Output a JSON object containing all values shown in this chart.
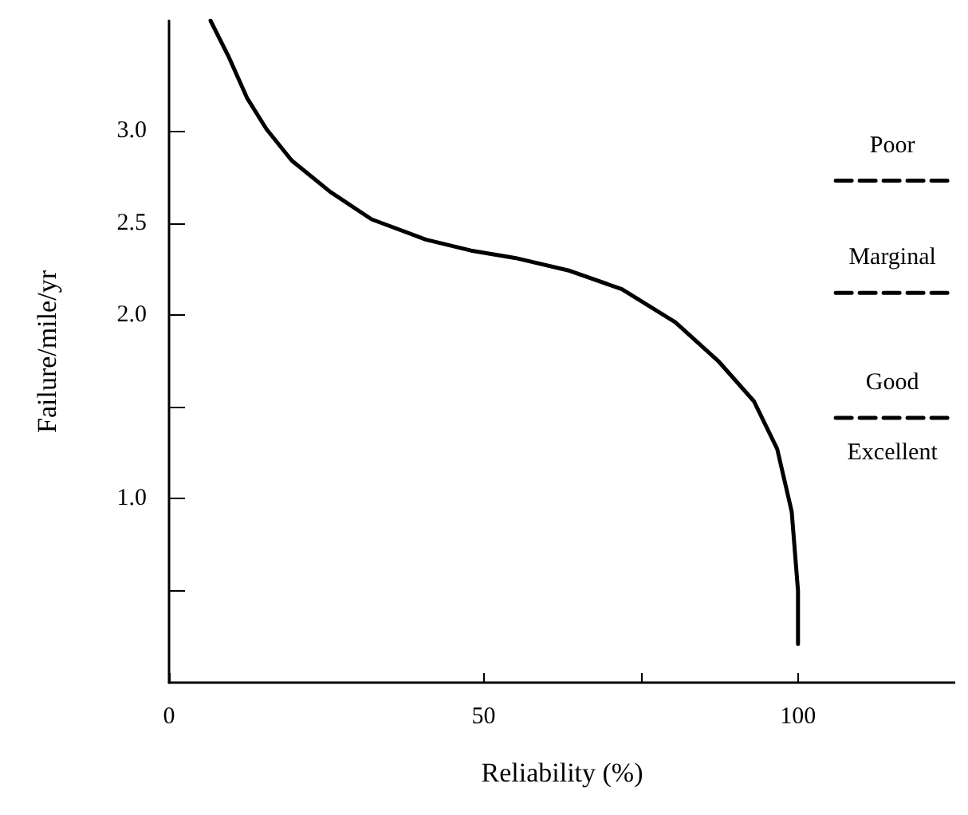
{
  "chart_data": {
    "type": "line",
    "xlabel": "Reliability (%)",
    "ylabel": "Failure/mile/yr",
    "xlim": [
      0,
      125
    ],
    "xticks": [
      0,
      50,
      {
        "value": 75,
        "label": null
      },
      100
    ],
    "ylim": [
      0,
      3.6
    ],
    "yticks": [
      {
        "value": 0.5,
        "label": null
      },
      {
        "value": 1,
        "label": "1.0"
      },
      {
        "value": 1.5,
        "label": null
      },
      {
        "value": 2,
        "label": "2.0"
      },
      2.5,
      {
        "value": 3,
        "label": "3.0"
      }
    ],
    "marker": "none",
    "series": [
      {
        "color": "#000000",
        "line_style": "solid",
        "x": [
          6.6,
          9.4,
          12.4,
          15.5,
          19.5,
          25.6,
          32.2,
          40.8,
          48,
          55,
          63.7,
          72,
          80.5,
          87.3,
          93,
          96.7,
          99,
          100,
          100
        ],
        "values": [
          3.6,
          3.41,
          3.18,
          3.01,
          2.84,
          2.67,
          2.52,
          2.41,
          2.35,
          2.31,
          2.24,
          2.14,
          1.96,
          1.75,
          1.53,
          1.27,
          0.93,
          0.5,
          0.21
        ]
      },
      {
        "color": "#000000",
        "line_style": "dashed",
        "x": [
          106,
          124
        ],
        "values": [
          2.73,
          2.73
        ]
      },
      {
        "color": "#000000",
        "line_style": "dashed",
        "x": [
          106,
          124
        ],
        "values": [
          2.12,
          2.12
        ]
      },
      {
        "color": "#000000",
        "line_style": "dashed",
        "x": [
          106,
          124
        ],
        "values": [
          1.44,
          1.44
        ]
      }
    ],
    "annotations": [
      "Poor",
      "Marginal",
      "Good",
      "Excellent"
    ]
  }
}
